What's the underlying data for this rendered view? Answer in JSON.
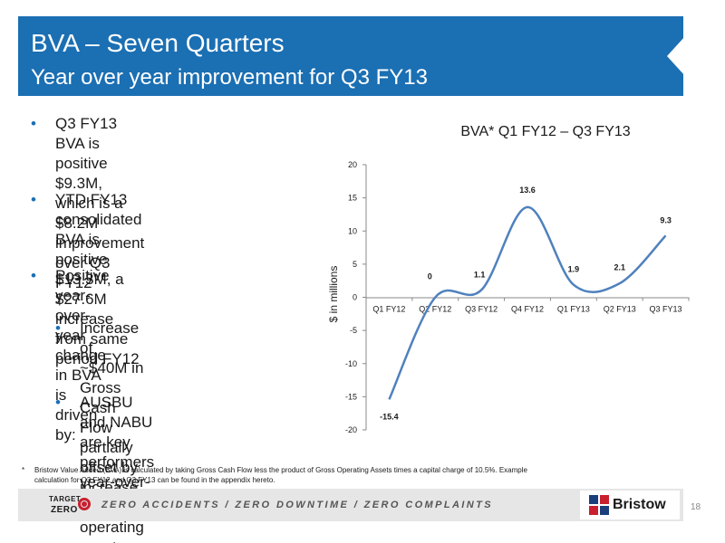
{
  "header": {
    "title": "BVA – Seven Quarters",
    "subtitle": "Year over year improvement for Q3 FY13"
  },
  "bullets": [
    {
      "level": 1,
      "lines": [
        "Q3 FY13 BVA is positive $9.3M,",
        "which is a $8.2M improvement",
        "over Q3 FY12"
      ]
    },
    {
      "level": 1,
      "lines": [
        "YTD FY13 consolidated BVA is",
        "positive $13.3M, a $27.6M",
        "increase from same period FY12"
      ]
    },
    {
      "level": 1,
      "lines": [
        "Positive year-over-year change",
        "in BVA is driven by:"
      ]
    },
    {
      "level": 2,
      "lines": [
        "Increase of ~$40M in Gross",
        "Cash Flow partially offset by",
        "increase in operating assets"
      ]
    },
    {
      "level": 2,
      "lines": [
        "AUSBU and NABU are key",
        "performers year-over-year"
      ]
    }
  ],
  "bullet_symbol": "•",
  "chart_data": {
    "type": "line",
    "title": "BVA* Q1 FY12 – Q3 FY13",
    "xlabel": "",
    "ylabel": "$ in millions",
    "categories": [
      "Q1 FY12",
      "Q2 FY12",
      "Q3 FY12",
      "Q4 FY12",
      "Q1 FY13",
      "Q2 FY13",
      "Q3 FY13"
    ],
    "series": [
      {
        "values": [
          -15.4,
          0,
          1.1,
          13.6,
          1.9,
          2.1,
          9.3
        ]
      }
    ],
    "data_labels": [
      "-15.4",
      "0",
      "1.1",
      "13.6",
      "1.9",
      "2.1",
      "9.3"
    ],
    "ylim": [
      -20,
      20
    ],
    "yticks": [
      "20",
      "15",
      "10",
      "5",
      "0",
      "-5",
      "-10",
      "-15",
      "-20"
    ],
    "smooth": true,
    "grid": false,
    "legend": "none",
    "line_color": "#4f81bd"
  },
  "footnote": {
    "marker": "*",
    "text": "Bristow Value Added (BVA) is calculated by taking Gross Cash Flow less the product of Gross Operating Assets times a capital charge of 10.5%. Example calculation for Q3 FY12 and Q3 FY13 can be found in the appendix hereto."
  },
  "footer": {
    "logo_top": "TARGET",
    "logo_bottom": "ZERO",
    "slogan": "ZERO ACCIDENTS / ZERO DOWNTIME / ZERO COMPLAINTS",
    "brand": "Bristow",
    "page_number": "18"
  },
  "colors": {
    "title_band": "#1b6fb3",
    "bullet": "#1b6fb3",
    "accent_red": "#c8202f",
    "footer_bar": "#e6e6e6"
  }
}
